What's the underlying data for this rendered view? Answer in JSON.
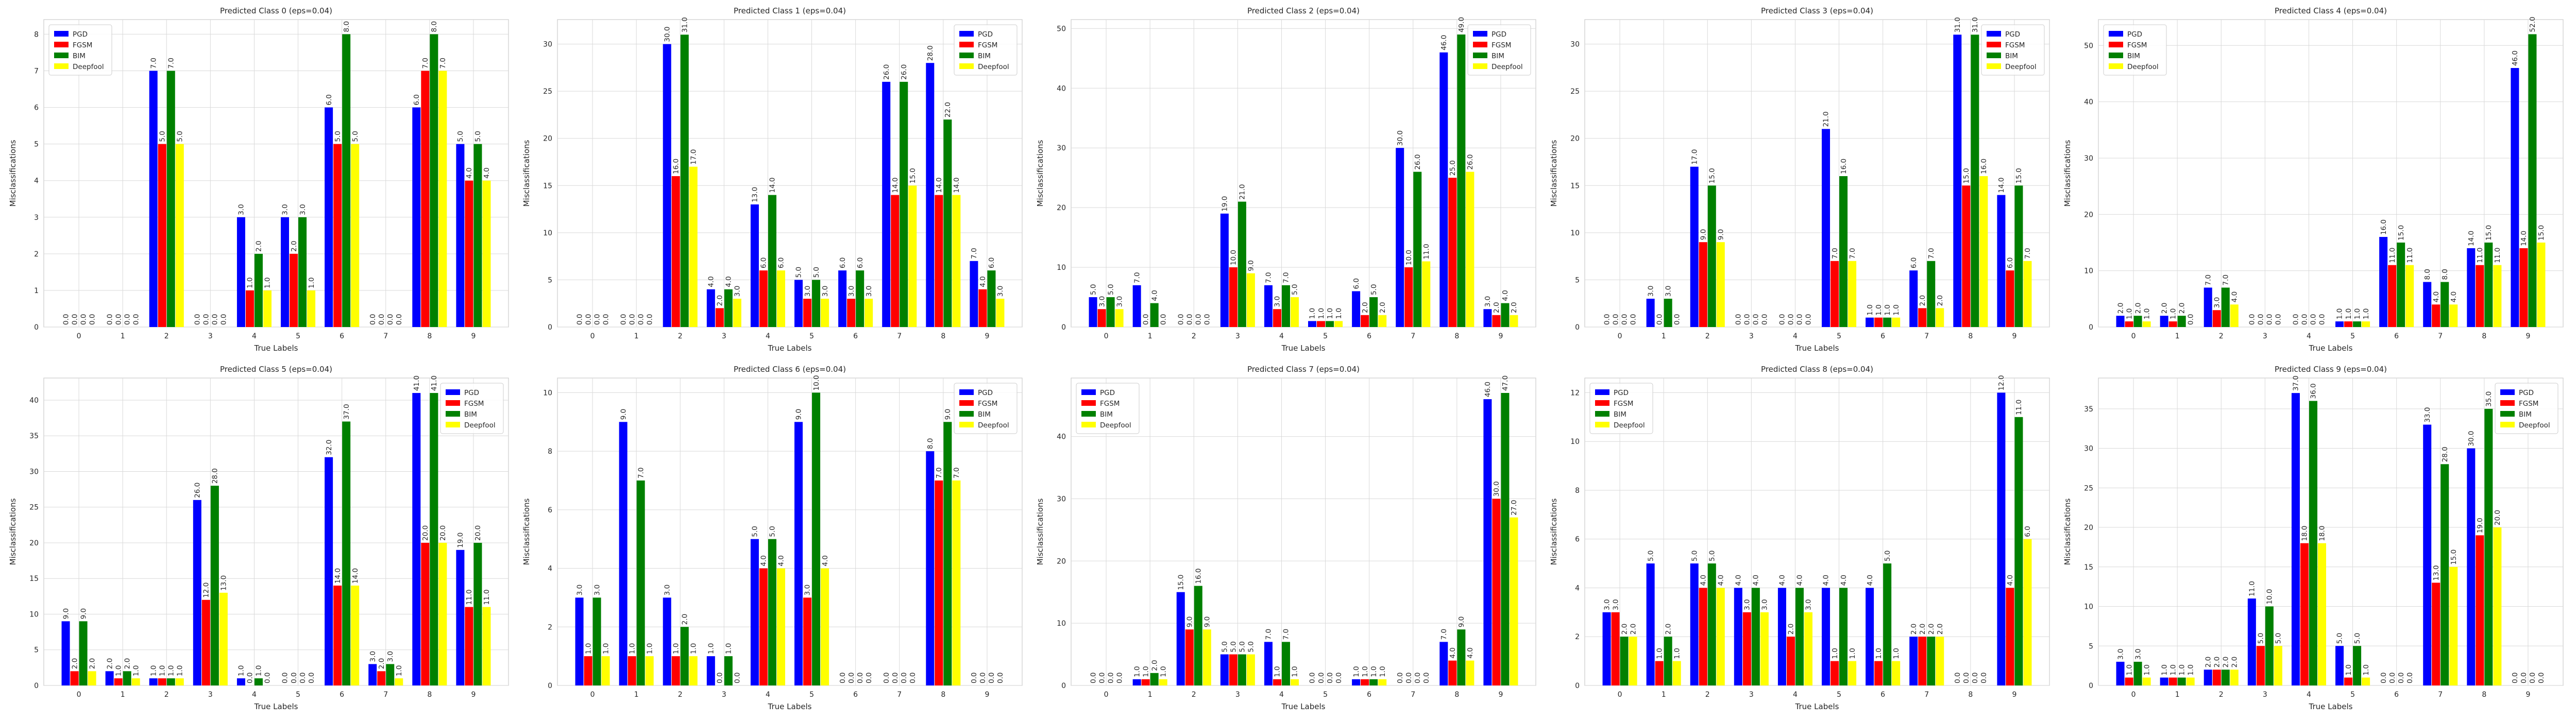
{
  "legend_series": [
    "PGD",
    "FGSM",
    "BIM",
    "Deepfool"
  ],
  "colors": {
    "PGD": "#0000ff",
    "FGSM": "#ff0000",
    "BIM": "#008000",
    "Deepfool": "#ffff00"
  },
  "chart_data": [
    {
      "type": "bar",
      "title": "Predicted Class 0 (eps=0.04)",
      "xlabel": "True Labels",
      "ylabel": "Misclassifications",
      "categories": [
        "0",
        "1",
        "2",
        "3",
        "4",
        "5",
        "6",
        "7",
        "8",
        "9"
      ],
      "ylim": [
        0,
        8.4
      ],
      "yticks": [
        0,
        1,
        2,
        3,
        4,
        5,
        6,
        7,
        8
      ],
      "legend_position": "top-left",
      "series": [
        {
          "name": "PGD",
          "values": [
            0,
            0,
            7,
            0,
            3,
            3,
            6,
            0,
            6,
            5
          ]
        },
        {
          "name": "FGSM",
          "values": [
            0,
            0,
            5,
            0,
            1,
            2,
            5,
            0,
            7,
            4
          ]
        },
        {
          "name": "BIM",
          "values": [
            0,
            0,
            7,
            0,
            2,
            3,
            8,
            0,
            8,
            5
          ]
        },
        {
          "name": "Deepfool",
          "values": [
            0,
            0,
            5,
            0,
            1,
            1,
            5,
            0,
            7,
            4
          ]
        }
      ]
    },
    {
      "type": "bar",
      "title": "Predicted Class 1 (eps=0.04)",
      "xlabel": "True Labels",
      "ylabel": "Misclassifications",
      "categories": [
        "0",
        "1",
        "2",
        "3",
        "4",
        "5",
        "6",
        "7",
        "8",
        "9"
      ],
      "ylim": [
        0,
        32.6
      ],
      "yticks": [
        0,
        5,
        10,
        15,
        20,
        25,
        30
      ],
      "legend_position": "top-right",
      "series": [
        {
          "name": "PGD",
          "values": [
            0,
            0,
            30,
            4,
            13,
            5,
            6,
            26,
            28,
            7
          ]
        },
        {
          "name": "FGSM",
          "values": [
            0,
            0,
            16,
            2,
            6,
            3,
            3,
            14,
            14,
            4
          ]
        },
        {
          "name": "BIM",
          "values": [
            0,
            0,
            31,
            4,
            14,
            5,
            6,
            26,
            22,
            6
          ]
        },
        {
          "name": "Deepfool",
          "values": [
            0,
            0,
            17,
            3,
            6,
            3,
            3,
            15,
            14,
            3
          ]
        }
      ]
    },
    {
      "type": "bar",
      "title": "Predicted Class 2 (eps=0.04)",
      "xlabel": "True Labels",
      "ylabel": "Misclassifications",
      "categories": [
        "0",
        "1",
        "2",
        "3",
        "4",
        "5",
        "6",
        "7",
        "8",
        "9"
      ],
      "ylim": [
        0,
        51.5
      ],
      "yticks": [
        0,
        10,
        20,
        30,
        40,
        50
      ],
      "legend_position": "top-right",
      "series": [
        {
          "name": "PGD",
          "values": [
            5,
            7,
            0,
            19,
            7,
            1,
            6,
            30,
            46,
            3
          ]
        },
        {
          "name": "FGSM",
          "values": [
            3,
            0,
            0,
            10,
            3,
            1,
            2,
            10,
            25,
            2
          ]
        },
        {
          "name": "BIM",
          "values": [
            5,
            4,
            0,
            21,
            7,
            1,
            5,
            26,
            49,
            4
          ]
        },
        {
          "name": "Deepfool",
          "values": [
            3,
            0,
            0,
            9,
            5,
            1,
            2,
            11,
            26,
            2
          ]
        }
      ]
    },
    {
      "type": "bar",
      "title": "Predicted Class 3 (eps=0.04)",
      "xlabel": "True Labels",
      "ylabel": "Misclassifications",
      "categories": [
        "0",
        "1",
        "2",
        "3",
        "4",
        "5",
        "6",
        "7",
        "8",
        "9"
      ],
      "ylim": [
        0,
        32.6
      ],
      "yticks": [
        0,
        5,
        10,
        15,
        20,
        25,
        30
      ],
      "legend_position": "top-right",
      "series": [
        {
          "name": "PGD",
          "values": [
            0,
            3,
            17,
            0,
            0,
            21,
            1,
            6,
            31,
            14
          ]
        },
        {
          "name": "FGSM",
          "values": [
            0,
            0,
            9,
            0,
            0,
            7,
            1,
            2,
            15,
            6
          ]
        },
        {
          "name": "BIM",
          "values": [
            0,
            3,
            15,
            0,
            0,
            16,
            1,
            7,
            31,
            15
          ]
        },
        {
          "name": "Deepfool",
          "values": [
            0,
            0,
            9,
            0,
            0,
            7,
            1,
            2,
            16,
            7
          ]
        }
      ]
    },
    {
      "type": "bar",
      "title": "Predicted Class 4 (eps=0.04)",
      "xlabel": "True Labels",
      "ylabel": "Misclassifications",
      "categories": [
        "0",
        "1",
        "2",
        "3",
        "4",
        "5",
        "6",
        "7",
        "8",
        "9"
      ],
      "ylim": [
        0,
        54.6
      ],
      "yticks": [
        0,
        10,
        20,
        30,
        40,
        50
      ],
      "legend_position": "top-left",
      "series": [
        {
          "name": "PGD",
          "values": [
            2,
            2,
            7,
            0,
            0,
            1,
            16,
            8,
            14,
            46
          ]
        },
        {
          "name": "FGSM",
          "values": [
            1,
            1,
            3,
            0,
            0,
            1,
            11,
            4,
            11,
            14
          ]
        },
        {
          "name": "BIM",
          "values": [
            2,
            2,
            7,
            0,
            0,
            1,
            15,
            8,
            15,
            52
          ]
        },
        {
          "name": "Deepfool",
          "values": [
            1,
            0,
            4,
            0,
            0,
            1,
            11,
            4,
            11,
            15
          ]
        }
      ]
    },
    {
      "type": "bar",
      "title": "Predicted Class 5 (eps=0.04)",
      "xlabel": "True Labels",
      "ylabel": "Misclassifications",
      "categories": [
        "0",
        "1",
        "2",
        "3",
        "4",
        "5",
        "6",
        "7",
        "8",
        "9"
      ],
      "ylim": [
        0,
        43.1
      ],
      "yticks": [
        0,
        5,
        10,
        15,
        20,
        25,
        30,
        35,
        40
      ],
      "legend_position": "top-right",
      "series": [
        {
          "name": "PGD",
          "values": [
            9,
            2,
            1,
            26,
            1,
            0,
            32,
            3,
            41,
            19
          ]
        },
        {
          "name": "FGSM",
          "values": [
            2,
            1,
            1,
            12,
            0,
            0,
            14,
            2,
            20,
            11
          ]
        },
        {
          "name": "BIM",
          "values": [
            9,
            2,
            1,
            28,
            1,
            0,
            37,
            3,
            41,
            20
          ]
        },
        {
          "name": "Deepfool",
          "values": [
            2,
            1,
            1,
            13,
            0,
            0,
            14,
            1,
            20,
            11
          ]
        }
      ]
    },
    {
      "type": "bar",
      "title": "Predicted Class 6 (eps=0.04)",
      "xlabel": "True Labels",
      "ylabel": "Misclassifications",
      "categories": [
        "0",
        "1",
        "2",
        "3",
        "4",
        "5",
        "6",
        "7",
        "8",
        "9"
      ],
      "ylim": [
        0,
        10.5
      ],
      "yticks": [
        0,
        2,
        4,
        6,
        8,
        10
      ],
      "legend_position": "top-right",
      "series": [
        {
          "name": "PGD",
          "values": [
            3,
            9,
            3,
            1,
            5,
            9,
            0,
            0,
            8,
            0
          ]
        },
        {
          "name": "FGSM",
          "values": [
            1,
            1,
            1,
            0,
            4,
            3,
            0,
            0,
            7,
            0
          ]
        },
        {
          "name": "BIM",
          "values": [
            3,
            7,
            2,
            1,
            5,
            10,
            0,
            0,
            9,
            0
          ]
        },
        {
          "name": "Deepfool",
          "values": [
            1,
            1,
            1,
            0,
            4,
            4,
            0,
            0,
            7,
            0
          ]
        }
      ]
    },
    {
      "type": "bar",
      "title": "Predicted Class 7 (eps=0.04)",
      "xlabel": "True Labels",
      "ylabel": "Misclassifications",
      "categories": [
        "0",
        "1",
        "2",
        "3",
        "4",
        "5",
        "6",
        "7",
        "8",
        "9"
      ],
      "ylim": [
        0,
        49.4
      ],
      "yticks": [
        0,
        10,
        20,
        30,
        40
      ],
      "legend_position": "top-left",
      "series": [
        {
          "name": "PGD",
          "values": [
            0,
            1,
            15,
            5,
            7,
            0,
            1,
            0,
            7,
            46
          ]
        },
        {
          "name": "FGSM",
          "values": [
            0,
            1,
            9,
            5,
            1,
            0,
            1,
            0,
            4,
            30
          ]
        },
        {
          "name": "BIM",
          "values": [
            0,
            2,
            16,
            5,
            7,
            0,
            1,
            0,
            9,
            47
          ]
        },
        {
          "name": "Deepfool",
          "values": [
            0,
            1,
            9,
            5,
            1,
            0,
            1,
            0,
            4,
            27
          ]
        }
      ]
    },
    {
      "type": "bar",
      "title": "Predicted Class 8 (eps=0.04)",
      "xlabel": "True Labels",
      "ylabel": "Misclassifications",
      "categories": [
        "0",
        "1",
        "2",
        "3",
        "4",
        "5",
        "6",
        "7",
        "8",
        "9"
      ],
      "ylim": [
        0,
        12.6
      ],
      "yticks": [
        0,
        2,
        4,
        6,
        8,
        10,
        12
      ],
      "legend_position": "top-left",
      "series": [
        {
          "name": "PGD",
          "values": [
            3,
            5,
            5,
            4,
            4,
            4,
            4,
            2,
            0,
            12
          ]
        },
        {
          "name": "FGSM",
          "values": [
            3,
            1,
            4,
            3,
            2,
            1,
            1,
            2,
            0,
            4
          ]
        },
        {
          "name": "BIM",
          "values": [
            2,
            2,
            5,
            4,
            4,
            4,
            5,
            2,
            0,
            11
          ]
        },
        {
          "name": "Deepfool",
          "values": [
            2,
            1,
            4,
            3,
            3,
            1,
            1,
            2,
            0,
            6
          ]
        }
      ]
    },
    {
      "type": "bar",
      "title": "Predicted Class 9 (eps=0.04)",
      "xlabel": "True Labels",
      "ylabel": "Misclassifications",
      "categories": [
        "0",
        "1",
        "2",
        "3",
        "4",
        "5",
        "6",
        "7",
        "8",
        "9"
      ],
      "ylim": [
        0,
        38.9
      ],
      "yticks": [
        0,
        5,
        10,
        15,
        20,
        25,
        30,
        35
      ],
      "legend_position": "top-right",
      "series": [
        {
          "name": "PGD",
          "values": [
            3,
            1,
            2,
            11,
            37,
            5,
            0,
            33,
            30,
            0
          ]
        },
        {
          "name": "FGSM",
          "values": [
            1,
            1,
            2,
            5,
            18,
            1,
            0,
            13,
            19,
            0
          ]
        },
        {
          "name": "BIM",
          "values": [
            3,
            1,
            2,
            10,
            36,
            5,
            0,
            28,
            35,
            0
          ]
        },
        {
          "name": "Deepfool",
          "values": [
            1,
            1,
            2,
            5,
            18,
            1,
            0,
            15,
            20,
            0
          ]
        }
      ]
    }
  ]
}
